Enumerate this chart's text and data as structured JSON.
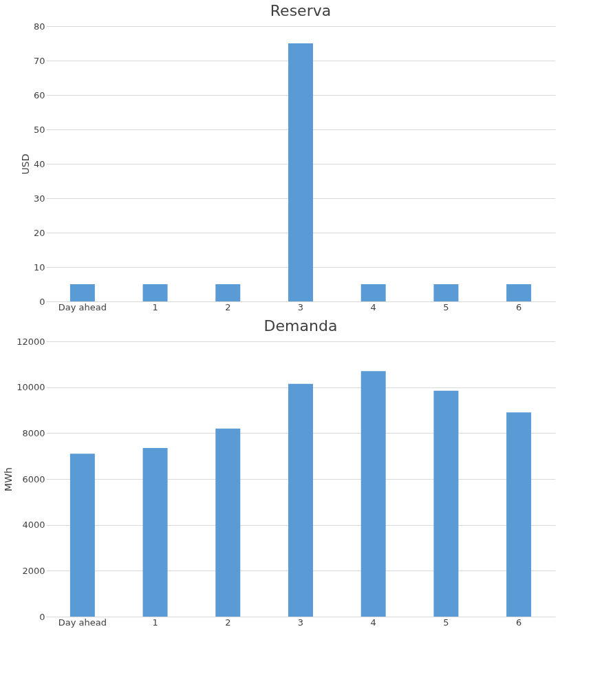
{
  "chart_data": [
    {
      "type": "bar",
      "title": "Reserva",
      "ylabel": "USD",
      "categories": [
        "Day ahead",
        "1",
        "2",
        "3",
        "4",
        "5",
        "6"
      ],
      "values": [
        5,
        5,
        5,
        75,
        5,
        5,
        5
      ],
      "color": "#5b9bd5",
      "ylim": [
        0,
        80
      ],
      "yticks": [
        0,
        10,
        20,
        30,
        40,
        50,
        60,
        70,
        80
      ],
      "grid": "y"
    },
    {
      "type": "bar",
      "title": "Demanda",
      "ylabel": "MWh",
      "categories": [
        "Day ahead",
        "1",
        "2",
        "3",
        "4",
        "5",
        "6"
      ],
      "values": [
        7100,
        7350,
        8200,
        10150,
        10700,
        9850,
        8900
      ],
      "color": "#5b9bd5",
      "ylim": [
        0,
        12000
      ],
      "yticks": [
        0,
        2000,
        4000,
        6000,
        8000,
        10000,
        12000
      ],
      "grid": "y"
    }
  ]
}
